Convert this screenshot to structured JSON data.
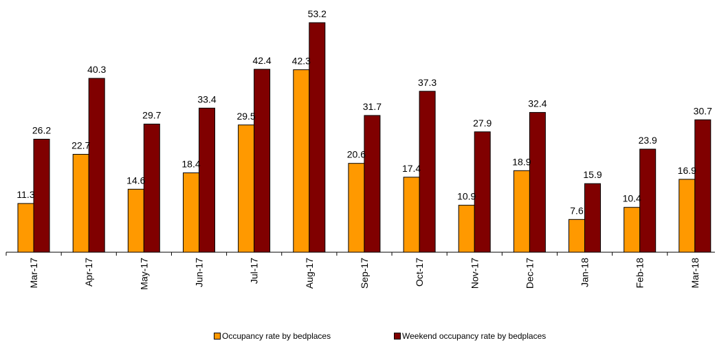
{
  "chart_data": {
    "type": "bar",
    "title": "",
    "xlabel": "",
    "ylabel": "",
    "ylim": [
      0,
      53.2
    ],
    "grid": false,
    "legend_position": "bottom",
    "categories": [
      "Mar-17",
      "Apr-17",
      "May-17",
      "Jun-17",
      "Jul-17",
      "Aug-17",
      "Sep-17",
      "Oct-17",
      "Nov-17",
      "Dec-17",
      "Jan-18",
      "Feb-18",
      "Mar-18"
    ],
    "series": [
      {
        "name": "Occupancy rate by bedplaces",
        "color": "#FF9900",
        "values": [
          11.3,
          22.7,
          14.6,
          18.4,
          29.5,
          42.3,
          20.6,
          17.4,
          10.9,
          18.9,
          7.6,
          10.4,
          16.9
        ]
      },
      {
        "name": "Weekend occupancy rate by bedplaces",
        "color": "#800000",
        "values": [
          26.2,
          40.3,
          29.7,
          33.4,
          42.4,
          53.2,
          31.7,
          37.3,
          27.9,
          32.4,
          15.9,
          23.9,
          30.7
        ]
      }
    ]
  }
}
